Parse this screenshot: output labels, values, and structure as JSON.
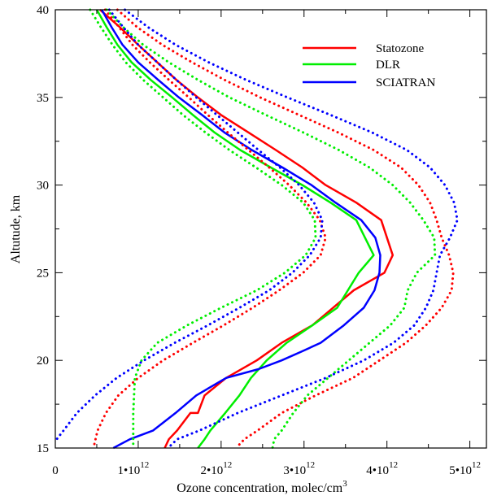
{
  "chart_data": {
    "type": "line",
    "xlabel": "Ozone concentration, molec/cm",
    "xlabel_sup": "3",
    "ylabel": "Altutude, km",
    "xlim": [
      0,
      5200000000000.0
    ],
    "ylim": [
      15,
      40
    ],
    "x_ticks": [
      {
        "value": 0,
        "label": "0",
        "exp": ""
      },
      {
        "value": 1000000000000.0,
        "label": "1•10",
        "exp": "12"
      },
      {
        "value": 2000000000000.0,
        "label": "2•10",
        "exp": "12"
      },
      {
        "value": 3000000000000.0,
        "label": "3•10",
        "exp": "12"
      },
      {
        "value": 4000000000000.0,
        "label": "4•10",
        "exp": "12"
      },
      {
        "value": 5000000000000.0,
        "label": "5•10",
        "exp": "12"
      }
    ],
    "y_ticks": [
      15,
      20,
      25,
      30,
      35,
      40
    ],
    "legend": {
      "position": "top-right"
    },
    "colors": {
      "Statozone": "#ff0000",
      "DLR": "#00ee00",
      "SCIATRAN": "#0000ff"
    },
    "series": [
      {
        "name": "Statozone",
        "style": "solid",
        "x": [
          540000000000.0,
          780000000000.0,
          1000000000000.0,
          1230000000000.0,
          1460000000000.0,
          1720000000000.0,
          2000000000000.0,
          2330000000000.0,
          2660000000000.0,
          2980000000000.0,
          3260000000000.0,
          3630000000000.0,
          3930000000000.0,
          4070000000000.0,
          3970000000000.0,
          3600000000000.0,
          3100000000000.0,
          2730000000000.0,
          2430000000000.0,
          2060000000000.0,
          1800000000000.0,
          1720000000000.0,
          1630000000000.0,
          1470000000000.0,
          1370000000000.0,
          1320000000000.0
        ],
        "y": [
          40,
          39,
          38,
          37,
          36,
          35,
          34,
          33,
          32,
          31,
          30,
          29,
          28,
          26,
          25,
          24,
          22,
          21,
          20,
          19,
          18,
          17,
          17,
          16,
          15.5,
          15
        ]
      },
      {
        "name": "DLR",
        "style": "solid",
        "x": [
          500000000000.0,
          620000000000.0,
          750000000000.0,
          920000000000.0,
          1150000000000.0,
          1410000000000.0,
          1660000000000.0,
          1920000000000.0,
          2230000000000.0,
          2600000000000.0,
          2980000000000.0,
          3320000000000.0,
          3630000000000.0,
          3840000000000.0,
          3660000000000.0,
          3400000000000.0,
          3100000000000.0,
          2790000000000.0,
          2550000000000.0,
          2360000000000.0,
          2220000000000.0,
          2050000000000.0,
          1870000000000.0,
          1800000000000.0,
          1720000000000.0
        ],
        "y": [
          40,
          39,
          38,
          37,
          36,
          35,
          34,
          33,
          32,
          31,
          30,
          29,
          28,
          26,
          25,
          23,
          22,
          21,
          20,
          19,
          18,
          17,
          16,
          15.5,
          15
        ]
      },
      {
        "name": "SCIATRAN",
        "style": "solid",
        "x": [
          560000000000.0,
          680000000000.0,
          810000000000.0,
          1000000000000.0,
          1240000000000.0,
          1490000000000.0,
          1770000000000.0,
          2040000000000.0,
          2370000000000.0,
          2740000000000.0,
          3090000000000.0,
          3380000000000.0,
          3690000000000.0,
          3860000000000.0,
          3920000000000.0,
          3910000000000.0,
          3850000000000.0,
          3720000000000.0,
          3480000000000.0,
          3200000000000.0,
          2970000000000.0,
          2730000000000.0,
          2450000000000.0,
          2060000000000.0,
          1700000000000.0,
          1450000000000.0,
          1180000000000.0,
          900000000000.0,
          700000000000.0
        ],
        "y": [
          40,
          39,
          38,
          37,
          36,
          35,
          34,
          33,
          32,
          31,
          30,
          29,
          28,
          27,
          26,
          25,
          24,
          23,
          22,
          21,
          20.5,
          20,
          19.5,
          19,
          18,
          17,
          16,
          15.5,
          15
        ]
      },
      {
        "name": "Statozone lower",
        "style": "dotted",
        "x": [
          600000000000.0,
          770000000000.0,
          930000000000.0,
          1140000000000.0,
          1370000000000.0,
          1610000000000.0,
          1840000000000.0,
          2080000000000.0,
          2330000000000.0,
          2580000000000.0,
          2820000000000.0,
          3030000000000.0,
          3190000000000.0,
          3260000000000.0,
          3200000000000.0,
          2990000000000.0,
          2700000000000.0,
          2380000000000.0,
          2030000000000.0,
          1660000000000.0,
          1300000000000.0,
          1000000000000.0,
          760000000000.0,
          610000000000.0,
          510000000000.0,
          460000000000.0
        ],
        "y": [
          40,
          39,
          38,
          37,
          36,
          35,
          34,
          33,
          32,
          31,
          30,
          29,
          28,
          27,
          26,
          25,
          24,
          23,
          22,
          21,
          20,
          19,
          18,
          17,
          16,
          15
        ]
      },
      {
        "name": "Statozone upper",
        "style": "dotted",
        "x": [
          750000000000.0,
          990000000000.0,
          1290000000000.0,
          1650000000000.0,
          2040000000000.0,
          2470000000000.0,
          2940000000000.0,
          3410000000000.0,
          3840000000000.0,
          4170000000000.0,
          4380000000000.0,
          4520000000000.0,
          4600000000000.0,
          4660000000000.0,
          4750000000000.0,
          4800000000000.0,
          4780000000000.0,
          4660000000000.0,
          4470000000000.0,
          4230000000000.0,
          3910000000000.0,
          3590000000000.0,
          3140000000000.0,
          2730000000000.0,
          2440000000000.0,
          2280000000000.0,
          2180000000000.0
        ],
        "y": [
          40,
          39,
          38,
          37,
          36,
          35,
          34,
          33,
          32,
          31,
          30,
          29,
          28,
          27,
          26,
          25,
          24,
          23,
          22,
          21,
          20,
          19,
          18,
          17,
          16,
          15.5,
          15
        ]
      },
      {
        "name": "DLR lower",
        "style": "dotted",
        "x": [
          420000000000.0,
          550000000000.0,
          690000000000.0,
          850000000000.0,
          1060000000000.0,
          1300000000000.0,
          1540000000000.0,
          1810000000000.0,
          2100000000000.0,
          2420000000000.0,
          2730000000000.0,
          2990000000000.0,
          3130000000000.0,
          3140000000000.0,
          3020000000000.0,
          2770000000000.0,
          2430000000000.0,
          2000000000000.0,
          1590000000000.0,
          1230000000000.0,
          1040000000000.0,
          960000000000.0,
          950000000000.0,
          940000000000.0,
          940000000000.0,
          940000000000.0
        ],
        "y": [
          40,
          39,
          38,
          37,
          36,
          35,
          34,
          33,
          32,
          31,
          30,
          29,
          28,
          27,
          26,
          25,
          24,
          23,
          22,
          21,
          20,
          19,
          18,
          17,
          16,
          15
        ]
      },
      {
        "name": "DLR upper",
        "style": "dotted",
        "x": [
          620000000000.0,
          820000000000.0,
          1060000000000.0,
          1370000000000.0,
          1720000000000.0,
          2100000000000.0,
          2540000000000.0,
          2990000000000.0,
          3420000000000.0,
          3790000000000.0,
          4070000000000.0,
          4280000000000.0,
          4440000000000.0,
          4570000000000.0,
          4580000000000.0,
          4360000000000.0,
          4250000000000.0,
          4210000000000.0,
          4040000000000.0,
          3790000000000.0,
          3540000000000.0,
          3290000000000.0,
          3040000000000.0,
          2870000000000.0,
          2730000000000.0,
          2640000000000.0,
          2620000000000.0
        ],
        "y": [
          40,
          39,
          38,
          37,
          36,
          35,
          34,
          33,
          32,
          31,
          30,
          29,
          28,
          27,
          26,
          25,
          24,
          23,
          22,
          21,
          20,
          19,
          18,
          17,
          16,
          15.5,
          15
        ]
      },
      {
        "name": "SCIATRAN lower",
        "style": "dotted",
        "x": [
          650000000000.0,
          820000000000.0,
          1000000000000.0,
          1230000000000.0,
          1460000000000.0,
          1700000000000.0,
          1950000000000.0,
          2200000000000.0,
          2450000000000.0,
          2710000000000.0,
          2940000000000.0,
          3120000000000.0,
          3220000000000.0,
          3200000000000.0,
          3070000000000.0,
          2860000000000.0,
          2580000000000.0,
          2220000000000.0,
          1840000000000.0,
          1440000000000.0,
          1070000000000.0,
          740000000000.0,
          480000000000.0,
          260000000000.0,
          100000000000.0,
          0
        ],
        "y": [
          40,
          39,
          38,
          37,
          36,
          35,
          34,
          33,
          32,
          31,
          30,
          29,
          28,
          27,
          26,
          25,
          24,
          23,
          22,
          21,
          20,
          19,
          18,
          17,
          16,
          15.4
        ]
      },
      {
        "name": "SCIATRAN upper",
        "style": "dotted",
        "x": [
          840000000000.0,
          1120000000000.0,
          1450000000000.0,
          1850000000000.0,
          2300000000000.0,
          2800000000000.0,
          3320000000000.0,
          3820000000000.0,
          4240000000000.0,
          4520000000000.0,
          4700000000000.0,
          4810000000000.0,
          4850000000000.0,
          4760000000000.0,
          4640000000000.0,
          4600000000000.0,
          4560000000000.0,
          4470000000000.0,
          4330000000000.0,
          4080000000000.0,
          3720000000000.0,
          3260000000000.0,
          2730000000000.0,
          2200000000000.0,
          1740000000000.0,
          1470000000000.0,
          1360000000000.0
        ],
        "y": [
          40,
          39,
          38,
          37,
          36,
          35,
          34,
          33,
          32,
          31,
          30,
          29,
          28,
          27,
          26,
          25,
          24,
          23,
          22,
          21,
          20,
          19,
          18,
          17,
          16,
          15.5,
          15
        ]
      }
    ]
  }
}
